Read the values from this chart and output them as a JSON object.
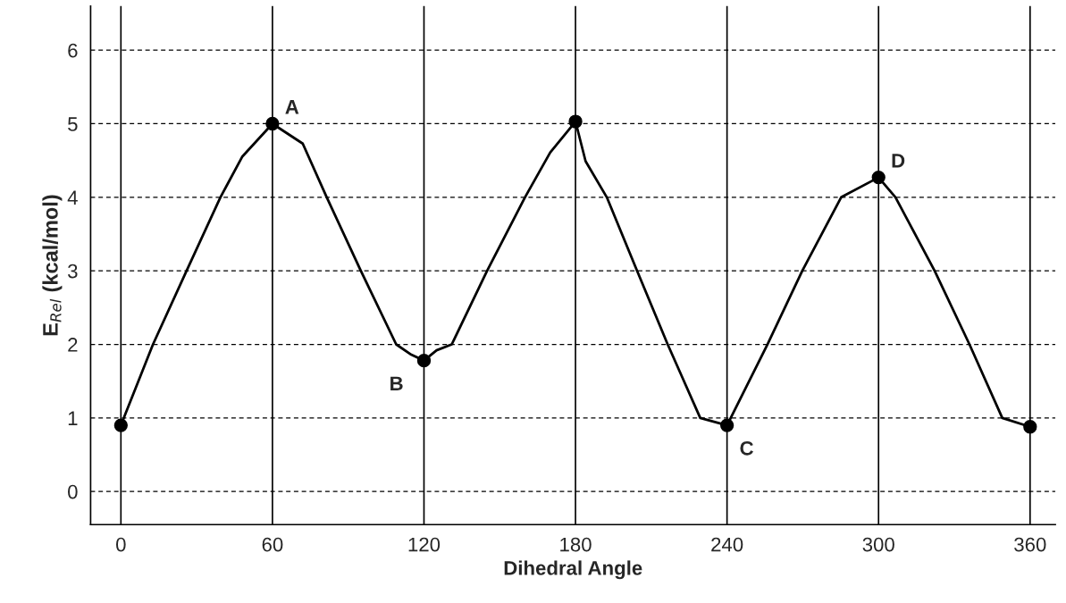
{
  "chart_data": {
    "type": "line",
    "xlabel": "Dihedral Angle",
    "ylabel": "E$_{Rel}$ (kcal/mol)",
    "series": [
      {
        "color": "#000000",
        "marker": "none",
        "x": [
          0,
          12.7,
          26,
          39.4,
          48,
          60,
          72,
          81.5,
          95,
          109,
          115,
          120,
          125,
          131,
          145,
          160,
          170,
          180,
          184,
          192.4,
          204.4,
          216.5,
          229.4,
          240,
          256,
          269.8,
          285.2,
          300,
          306.7,
          322.2,
          336,
          349,
          360
        ],
        "values": [
          0.9,
          2,
          3,
          4,
          4.55,
          5.0,
          4.73,
          4,
          3,
          2,
          1.86,
          1.78,
          1.92,
          2,
          3,
          4,
          4.61,
          5.03,
          4.49,
          4,
          3,
          2,
          1,
          0.9,
          2,
          3,
          4,
          4.27,
          4,
          3,
          2,
          1,
          0.88
        ]
      },
      {
        "type": "scatter",
        "color": "#000000",
        "marker": "circle",
        "x": [
          0,
          60,
          120,
          180,
          240,
          300,
          360
        ],
        "values": [
          0.9,
          5.0,
          1.78,
          5.03,
          0.9,
          4.27,
          0.88
        ]
      }
    ],
    "line_style": "solid",
    "xlim": [
      -12,
      370
    ],
    "xticks": [
      0,
      60,
      120,
      180,
      240,
      300,
      360
    ],
    "ylim": [
      -0.45,
      6.6
    ],
    "yticks": [
      0,
      1,
      2,
      3,
      4,
      5,
      6
    ],
    "grid": true,
    "annotations": [
      {
        "text": "A",
        "x": 60,
        "y": 5.0
      },
      {
        "text": "B",
        "x": 120,
        "y": 1.78
      },
      {
        "text": "C",
        "x": 240,
        "y": 0.9
      },
      {
        "text": "D",
        "x": 300,
        "y": 4.27
      }
    ]
  }
}
